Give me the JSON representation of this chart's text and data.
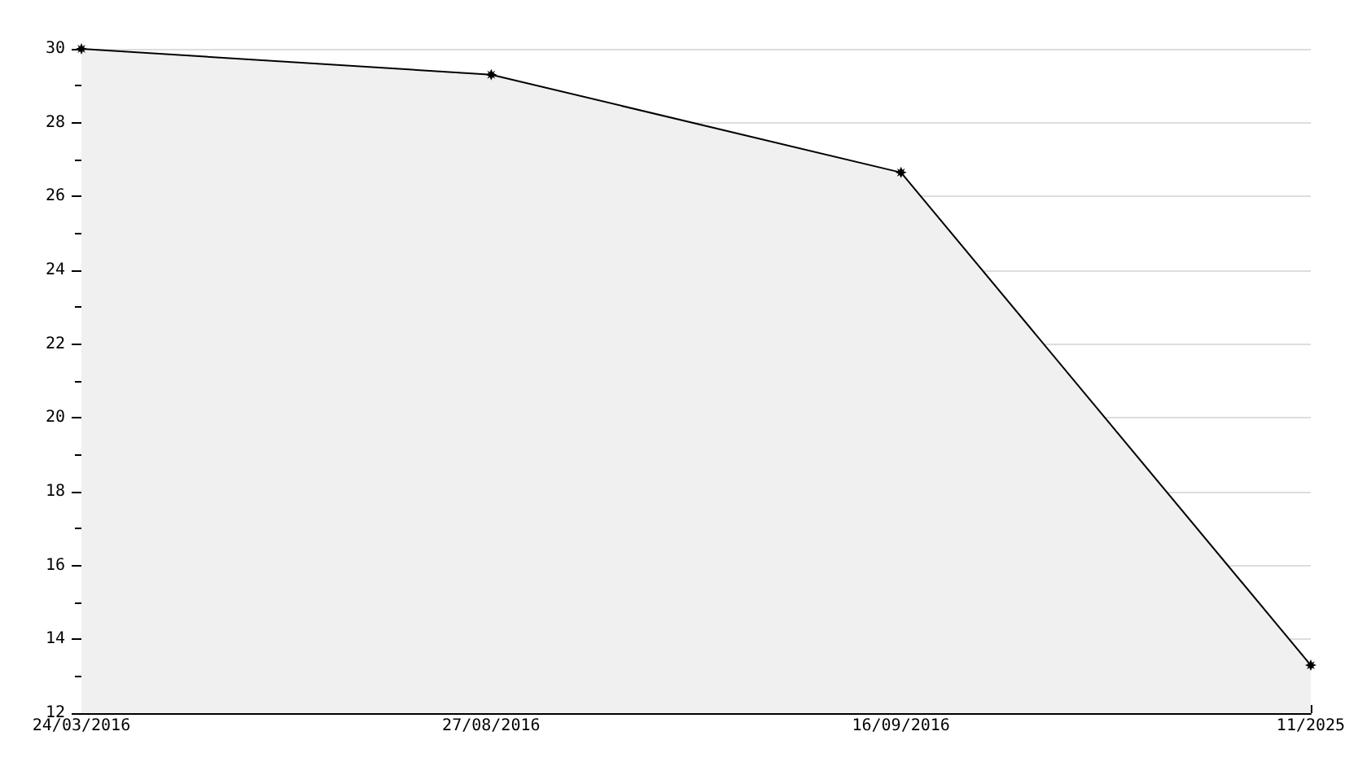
{
  "chart_data": {
    "type": "area",
    "categories": [
      "24/03/2016",
      "27/08/2016",
      "16/09/2016",
      "11/2025"
    ],
    "values": [
      30,
      29.3,
      26.65,
      13.3
    ],
    "color": "#000000",
    "ylim": [
      12,
      30
    ],
    "yticks": [
      12,
      14,
      16,
      18,
      20,
      22,
      24,
      26,
      28,
      30
    ],
    "grid": "y",
    "marker": "star",
    "line_style": "solid"
  }
}
